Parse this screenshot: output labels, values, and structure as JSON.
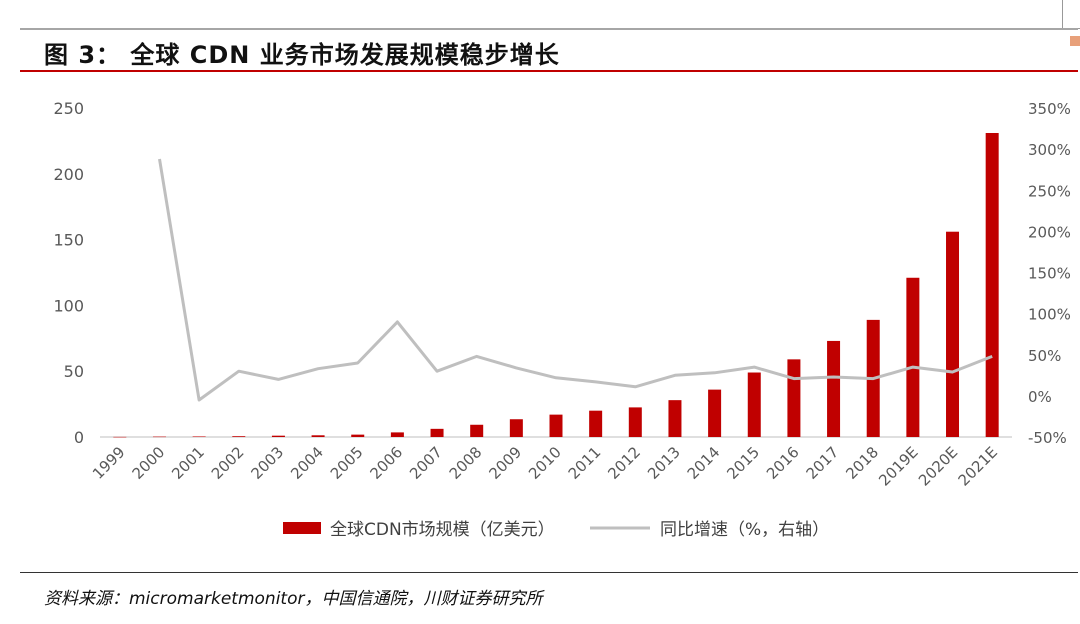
{
  "header": {
    "title": "图 3：  全球 CDN 业务市场发展规模稳步增长"
  },
  "footer": {
    "source": "资料来源：micromarketmonitor，中国信通院，川财证券研究所"
  },
  "chart_data": {
    "type": "bar",
    "categories": [
      "1999",
      "2000",
      "2001",
      "2002",
      "2003",
      "2004",
      "2005",
      "2006",
      "2007",
      "2008",
      "2009",
      "2010",
      "2011",
      "2012",
      "2013",
      "2014",
      "2015",
      "2016",
      "2017",
      "2018",
      "2019E",
      "2020E",
      "2021E"
    ],
    "series": [
      {
        "name": "全球CDN市场规模（亿美元）",
        "type": "bar",
        "axis": "left",
        "color": "#c00000",
        "values": [
          0.1,
          0.3,
          0.4,
          0.6,
          1.0,
          1.3,
          1.8,
          3.5,
          6.2,
          9.3,
          13.5,
          17.0,
          20.0,
          22.5,
          28.0,
          36.0,
          49.0,
          59.0,
          73.0,
          89.0,
          121.0,
          156.0,
          231.0
        ]
      },
      {
        "name": "同比增速（%，右轴）",
        "type": "line",
        "axis": "right",
        "color": "#bfbfbf",
        "values": [
          null,
          288,
          -5,
          30,
          20,
          33,
          40,
          90,
          30,
          48,
          34,
          22,
          17,
          11,
          25,
          28,
          35,
          21,
          23,
          21,
          35,
          29,
          48
        ]
      }
    ],
    "yaxis_left": {
      "min": 0,
      "max": 250,
      "ticks": [
        "0",
        "50",
        "100",
        "150",
        "200",
        "250"
      ]
    },
    "yaxis_right": {
      "min": -50,
      "max": 350,
      "ticks": [
        "-50%",
        "0%",
        "50%",
        "100%",
        "150%",
        "200%",
        "250%",
        "300%",
        "350%"
      ]
    },
    "grid": false,
    "legend_position": "bottom"
  }
}
